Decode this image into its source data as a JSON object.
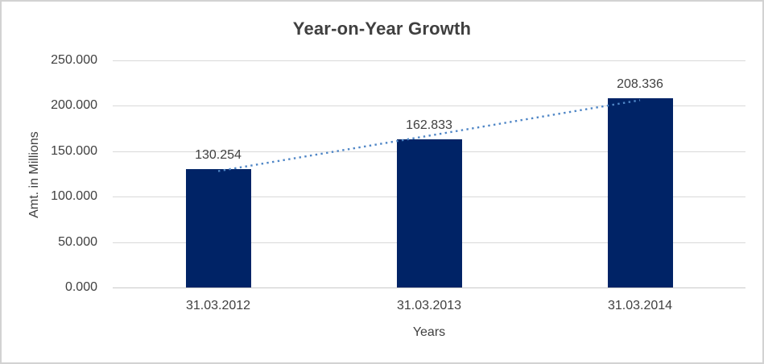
{
  "chart_data": {
    "type": "bar",
    "title": "Year-on-Year Growth",
    "xlabel": "Years",
    "ylabel": "Amt. in Millions",
    "categories": [
      "31.03.2012",
      "31.03.2013",
      "31.03.2014"
    ],
    "values": [
      130.254,
      162.833,
      208.336
    ],
    "data_labels": [
      "130.254",
      "162.833",
      "208.336"
    ],
    "ylim": [
      0,
      250
    ],
    "ytick_labels": [
      "250.000",
      "200.000",
      "150.000",
      "100.000",
      "50.000",
      "0.000"
    ],
    "grid": true,
    "legend": false,
    "trendline": {
      "type": "linear",
      "style": "dotted",
      "start_value": 128.1,
      "end_value": 206.2
    },
    "colors": {
      "bar": "#002366",
      "trendline": "#4f86c6",
      "gridline": "#d9d9d9",
      "axis_line": "#c9c9c9",
      "text": "#404040",
      "title_text": "#3f3f3f",
      "border": "#d2d2d2",
      "background": "#ffffff"
    }
  }
}
